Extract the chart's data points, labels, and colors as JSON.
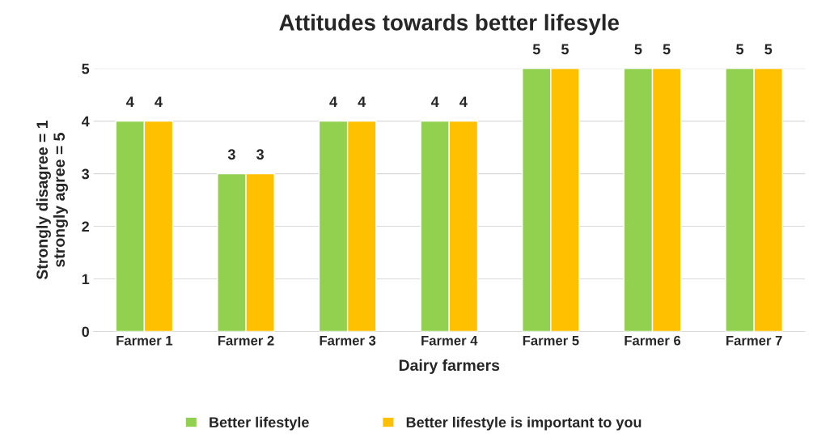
{
  "chart_data": {
    "type": "bar",
    "title": "Attitudes towards better lifesyle",
    "xlabel": "Dairy farmers",
    "ylabel": "Strongly disagree = 1\nstrongly agree = 5",
    "categories": [
      "Farmer 1",
      "Farmer 2",
      "Farmer 3",
      "Farmer 4",
      "Farmer 5",
      "Farmer 6",
      "Farmer 7"
    ],
    "series": [
      {
        "name": "Better lifestyle",
        "color": "#92d050",
        "values": [
          4,
          3,
          4,
          4,
          5,
          5,
          5
        ]
      },
      {
        "name": "Better lifestyle is important to you",
        "color": "#ffc000",
        "values": [
          4,
          3,
          4,
          4,
          5,
          5,
          5
        ]
      }
    ],
    "ylim": [
      0,
      5
    ],
    "yticks": [
      0,
      1,
      2,
      3,
      4,
      5
    ],
    "grid": "y",
    "legend": "bottom",
    "data_labels": true
  }
}
